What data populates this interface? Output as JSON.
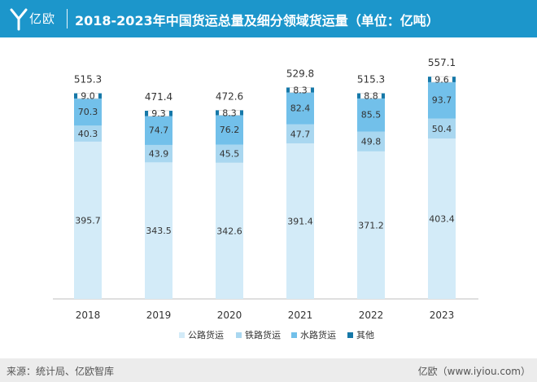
{
  "header": {
    "logo_text": "亿欧",
    "title": "2018-2023年中国货运总量及细分领域货运量（单位：亿吨）"
  },
  "footer": {
    "source": "来源：统计局、亿欧智库",
    "brand": "亿欧（www.iyiou.com）"
  },
  "colors": {
    "header": "#1c96cb",
    "road": "#d3ebf8",
    "rail": "#a9d7f0",
    "water": "#72c0ea",
    "other": "#1678a8"
  },
  "chart_data": {
    "type": "bar",
    "stacked": true,
    "categories": [
      "2018",
      "2019",
      "2020",
      "2021",
      "2022",
      "2023"
    ],
    "series": [
      {
        "name": "公路货运",
        "values": [
          395.7,
          343.5,
          342.6,
          391.4,
          371.2,
          403.4
        ]
      },
      {
        "name": "铁路货运",
        "values": [
          40.3,
          43.9,
          45.5,
          47.7,
          49.8,
          50.4
        ]
      },
      {
        "name": "水路货运",
        "values": [
          70.3,
          74.7,
          76.2,
          82.4,
          85.5,
          93.7
        ]
      },
      {
        "name": "其他",
        "values": [
          9.0,
          9.3,
          8.3,
          8.3,
          8.8,
          9.6
        ]
      }
    ],
    "totals": [
      515.3,
      471.4,
      472.6,
      529.8,
      515.3,
      557.1
    ],
    "legend_position": "bottom",
    "grid": false
  }
}
